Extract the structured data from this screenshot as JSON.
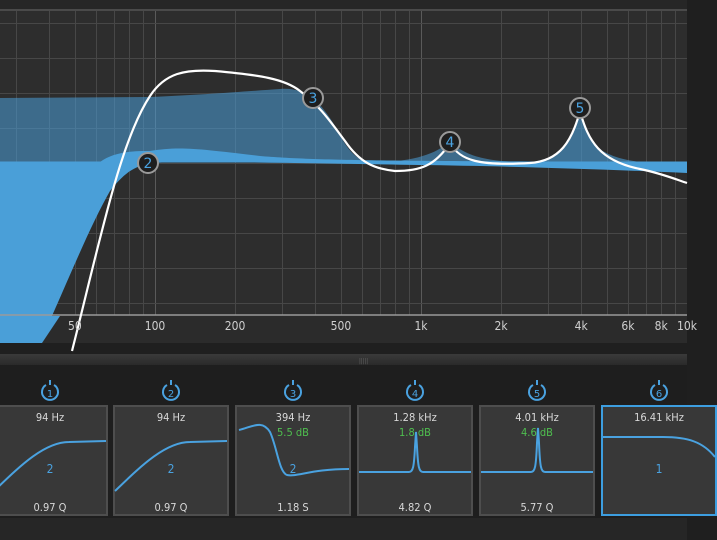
{
  "graph": {
    "x_axis_labels": [
      "50",
      "100",
      "200",
      "500",
      "1k",
      "2k",
      "4k",
      "6k",
      "8k",
      "10k"
    ],
    "nodes": [
      {
        "id": "2",
        "label": "2"
      },
      {
        "id": "3",
        "label": "3"
      },
      {
        "id": "4",
        "label": "4"
      },
      {
        "id": "5",
        "label": "5"
      }
    ],
    "colors": {
      "fill": "#4a9fd8",
      "curve": "#ffffff",
      "background": "#2d2d2d",
      "grid": "#474747"
    }
  },
  "splitter": {
    "grip": "|||||"
  },
  "bands": [
    {
      "number": "1",
      "freq": "94 Hz",
      "gain": "",
      "order": "2",
      "q": "0.97 Q",
      "type": "highpass",
      "enabled": true,
      "selected": false
    },
    {
      "number": "2",
      "freq": "94 Hz",
      "gain": "",
      "order": "2",
      "q": "0.97 Q",
      "type": "highpass",
      "enabled": true,
      "selected": false
    },
    {
      "number": "3",
      "freq": "394 Hz",
      "gain": "5.5 dB",
      "order": "2",
      "q": "1.18 S",
      "type": "high-shelf",
      "enabled": true,
      "selected": false
    },
    {
      "number": "4",
      "freq": "1.28 kHz",
      "gain": "1.8 dB",
      "order": "",
      "q": "4.82 Q",
      "type": "bell",
      "enabled": true,
      "selected": false
    },
    {
      "number": "5",
      "freq": "4.01 kHz",
      "gain": "4.6 dB",
      "order": "",
      "q": "5.77 Q",
      "type": "bell",
      "enabled": true,
      "selected": false
    },
    {
      "number": "6",
      "freq": "16.41 kHz",
      "gain": "",
      "order": "1",
      "q": "",
      "type": "lowpass",
      "enabled": true,
      "selected": true
    }
  ]
}
